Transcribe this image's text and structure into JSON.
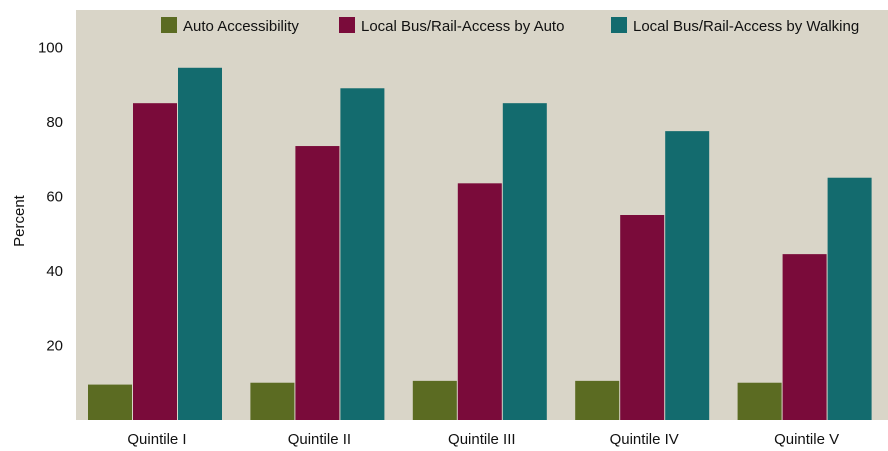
{
  "chart_data": {
    "type": "bar",
    "title": "",
    "xlabel": "",
    "ylabel": "Percent",
    "ylim": [
      0,
      110
    ],
    "yticks": [
      20,
      40,
      60,
      80,
      100
    ],
    "grid": false,
    "legend_position": "top",
    "background_color": "#d9d5c8",
    "categories": [
      "Quintile I",
      "Quintile II",
      "Quintile III",
      "Quintile IV",
      "Quintile V"
    ],
    "series": [
      {
        "name": "Auto Accessibility",
        "color": "#5b6b22",
        "values": [
          9.5,
          10,
          10.5,
          10.5,
          10
        ]
      },
      {
        "name": "Local Bus/Rail-Access by Auto",
        "color": "#7a0b3a",
        "values": [
          85,
          73.5,
          63.5,
          55,
          44.5
        ]
      },
      {
        "name": "Local Bus/Rail-Access by Walking",
        "color": "#136b6e",
        "values": [
          94.5,
          89,
          85,
          77.5,
          65
        ]
      }
    ]
  }
}
